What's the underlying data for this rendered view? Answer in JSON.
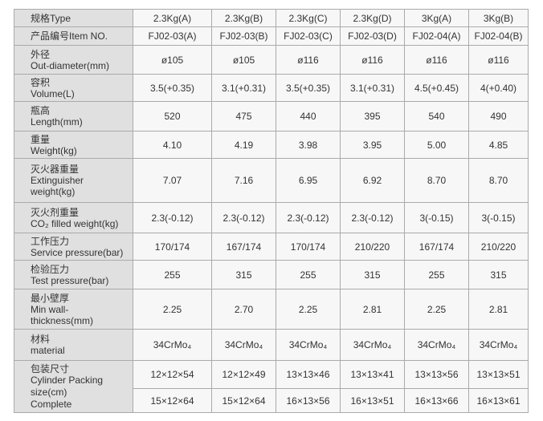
{
  "table": {
    "rows": [
      {
        "zh": "规格Type",
        "en": "",
        "values": [
          "2.3Kg(A)",
          "2.3Kg(B)",
          "2.3Kg(C)",
          "2.3Kg(D)",
          "3Kg(A)",
          "3Kg(B)"
        ]
      },
      {
        "zh": "产品编号Item NO.",
        "en": "",
        "values": [
          "FJ02-03(A)",
          "FJ02-03(B)",
          "FJ02-03(C)",
          "FJ02-03(D)",
          "FJ02-04(A)",
          "FJ02-04(B)"
        ]
      },
      {
        "zh": "外径",
        "en": "Out-diameter(mm)",
        "values": [
          "ø105",
          "ø105",
          "ø116",
          "ø116",
          "ø116",
          "ø116"
        ]
      },
      {
        "zh": "容积",
        "en": "Volume(L)",
        "values": [
          "3.5(+0.35)",
          "3.1(+0.31)",
          "3.5(+0.35)",
          "3.1(+0.31)",
          "4.5(+0.45)",
          "4(+0.40)"
        ]
      },
      {
        "zh": "瓶高",
        "en": "Length(mm)",
        "values": [
          "520",
          "475",
          "440",
          "395",
          "540",
          "490"
        ]
      },
      {
        "zh": "重量",
        "en": "Weight(kg)",
        "values": [
          "4.10",
          "4.19",
          "3.98",
          "3.95",
          "5.00",
          "4.85"
        ]
      },
      {
        "zh": "灭火器重量",
        "en": "Extinguisher weight(kg)",
        "values": [
          "7.07",
          "7.16",
          "6.95",
          "6.92",
          "8.70",
          "8.70"
        ]
      },
      {
        "zh": "灭火剂重量",
        "en": "CO₂ filled weight(kg)",
        "values": [
          "2.3(-0.12)",
          "2.3(-0.12)",
          "2.3(-0.12)",
          "2.3(-0.12)",
          "3(-0.15)",
          "3(-0.15)"
        ]
      },
      {
        "zh": "工作压力",
        "en": "Service pressure(bar)",
        "values": [
          "170/174",
          "167/174",
          "170/174",
          "210/220",
          "167/174",
          "210/220"
        ]
      },
      {
        "zh": "检验压力",
        "en": "Test pressure(bar)",
        "values": [
          "255",
          "315",
          "255",
          "315",
          "255",
          "315"
        ]
      },
      {
        "zh": "最小壁厚",
        "en": "Min wall-thickness(mm)",
        "values": [
          "2.25",
          "2.70",
          "2.25",
          "2.81",
          "2.25",
          "2.81"
        ]
      },
      {
        "zh": "材料",
        "en": "material",
        "values": [
          "34CrMo₄",
          "34CrMo₄",
          "34CrMo₄",
          "34CrMo₄",
          "34CrMo₄",
          "34CrMo₄"
        ]
      }
    ],
    "packing": {
      "zh": "包装尺寸",
      "en": "Cylinder Packing size(cm) Complete",
      "cylinder": [
        "12×12×54",
        "12×12×49",
        "13×13×46",
        "13×13×41",
        "13×13×56",
        "13×13×51"
      ],
      "complete": [
        "15×12×64",
        "15×12×64",
        "16×13×56",
        "16×13×51",
        "16×13×66",
        "16×13×61"
      ]
    }
  }
}
